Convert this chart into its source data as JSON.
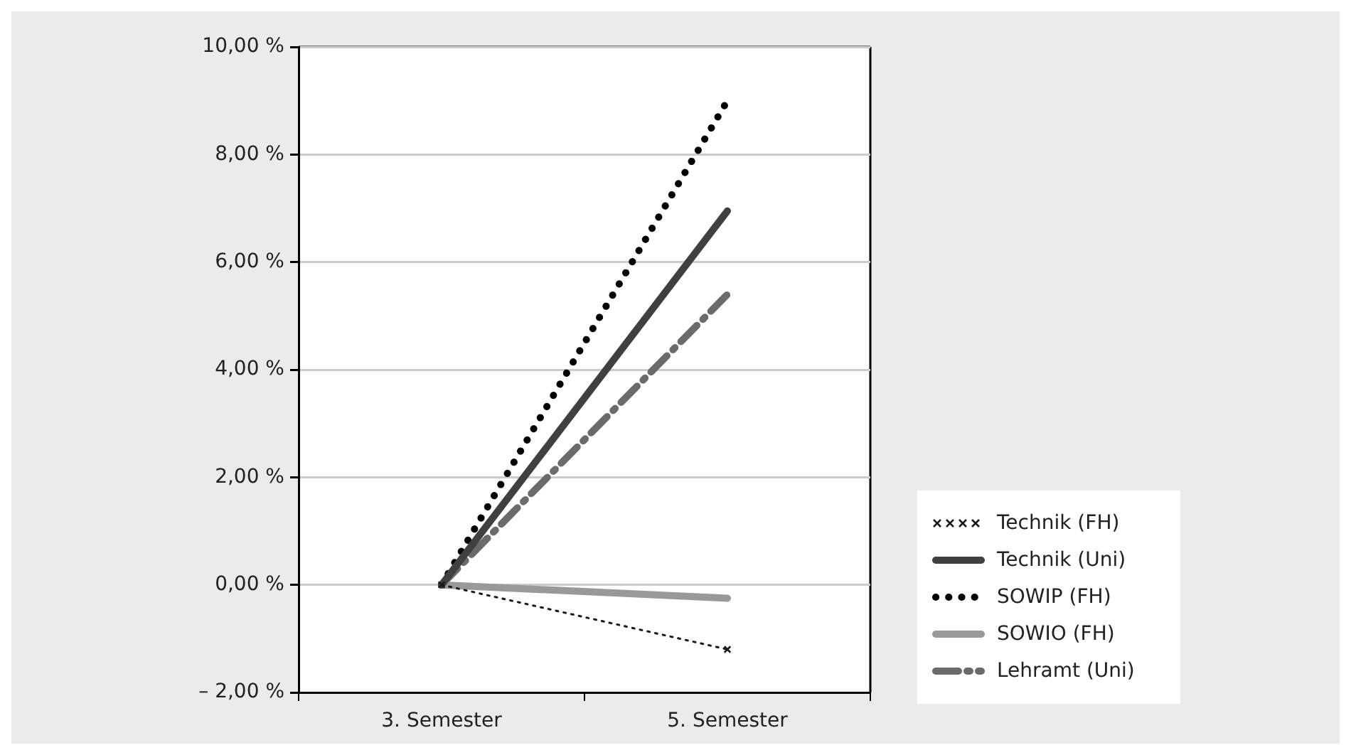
{
  "chart_data": {
    "type": "line",
    "categories": [
      "3. Semester",
      "5. Semester"
    ],
    "series": [
      {
        "name": "Technik (FH)",
        "color": "#1a1a1a",
        "values": [
          0,
          -1.2
        ],
        "marker": "cross",
        "line_style": "dotted"
      },
      {
        "name": "Technik (Uni)",
        "color": "#404040",
        "values": [
          0,
          6.95
        ],
        "line_style": "solid"
      },
      {
        "name": "SOWIP (FH)",
        "color": "#000000",
        "values": [
          0,
          9.0
        ],
        "line_style": "dotted"
      },
      {
        "name": "SOWIO (FH)",
        "color": "#999999",
        "values": [
          0,
          -0.25
        ],
        "line_style": "solid"
      },
      {
        "name": "Lehramt (Uni)",
        "color": "#6b6b6b",
        "values": [
          0,
          5.4
        ],
        "line_style": "dashed"
      }
    ],
    "ylim": [
      -2,
      10
    ],
    "yticks": [
      {
        "value": -2,
        "label": "– 2,00 %"
      },
      {
        "value": 0,
        "label": "0,00 %"
      },
      {
        "value": 2,
        "label": "2,00 %"
      },
      {
        "value": 4,
        "label": "4,00 %"
      },
      {
        "value": 6,
        "label": "6,00 %"
      },
      {
        "value": 8,
        "label": "8,00 %"
      },
      {
        "value": 10,
        "label": "10,00 %"
      }
    ],
    "grid": "y",
    "legend": "bottom right"
  }
}
